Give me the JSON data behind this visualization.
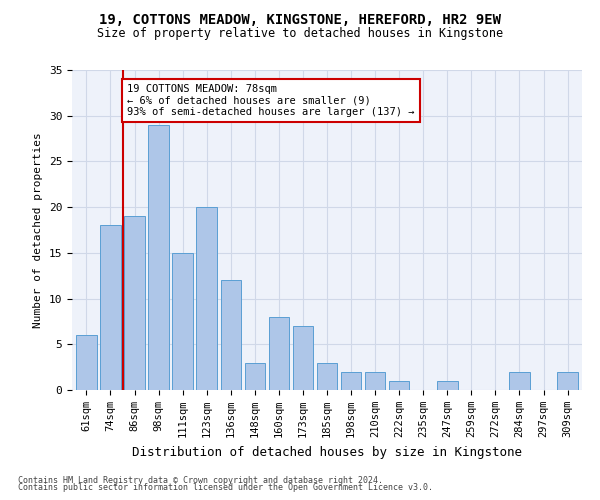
{
  "title1": "19, COTTONS MEADOW, KINGSTONE, HEREFORD, HR2 9EW",
  "title2": "Size of property relative to detached houses in Kingstone",
  "xlabel": "Distribution of detached houses by size in Kingstone",
  "ylabel": "Number of detached properties",
  "categories": [
    "61sqm",
    "74sqm",
    "86sqm",
    "98sqm",
    "111sqm",
    "123sqm",
    "136sqm",
    "148sqm",
    "160sqm",
    "173sqm",
    "185sqm",
    "198sqm",
    "210sqm",
    "222sqm",
    "235sqm",
    "247sqm",
    "259sqm",
    "272sqm",
    "284sqm",
    "297sqm",
    "309sqm"
  ],
  "values": [
    6,
    18,
    19,
    29,
    15,
    20,
    12,
    3,
    8,
    7,
    3,
    2,
    2,
    1,
    0,
    1,
    0,
    0,
    2,
    0,
    2
  ],
  "bar_color": "#aec6e8",
  "bar_edge_color": "#5a9fd4",
  "grid_color": "#d0d8e8",
  "bg_color": "#eef2fa",
  "annotation_text": "19 COTTONS MEADOW: 78sqm\n← 6% of detached houses are smaller (9)\n93% of semi-detached houses are larger (137) →",
  "annotation_box_color": "#ffffff",
  "annotation_box_edge": "#cc0000",
  "ref_line_color": "#cc0000",
  "ylim": [
    0,
    35
  ],
  "yticks": [
    0,
    5,
    10,
    15,
    20,
    25,
    30,
    35
  ],
  "footer1": "Contains HM Land Registry data © Crown copyright and database right 2024.",
  "footer2": "Contains public sector information licensed under the Open Government Licence v3.0."
}
